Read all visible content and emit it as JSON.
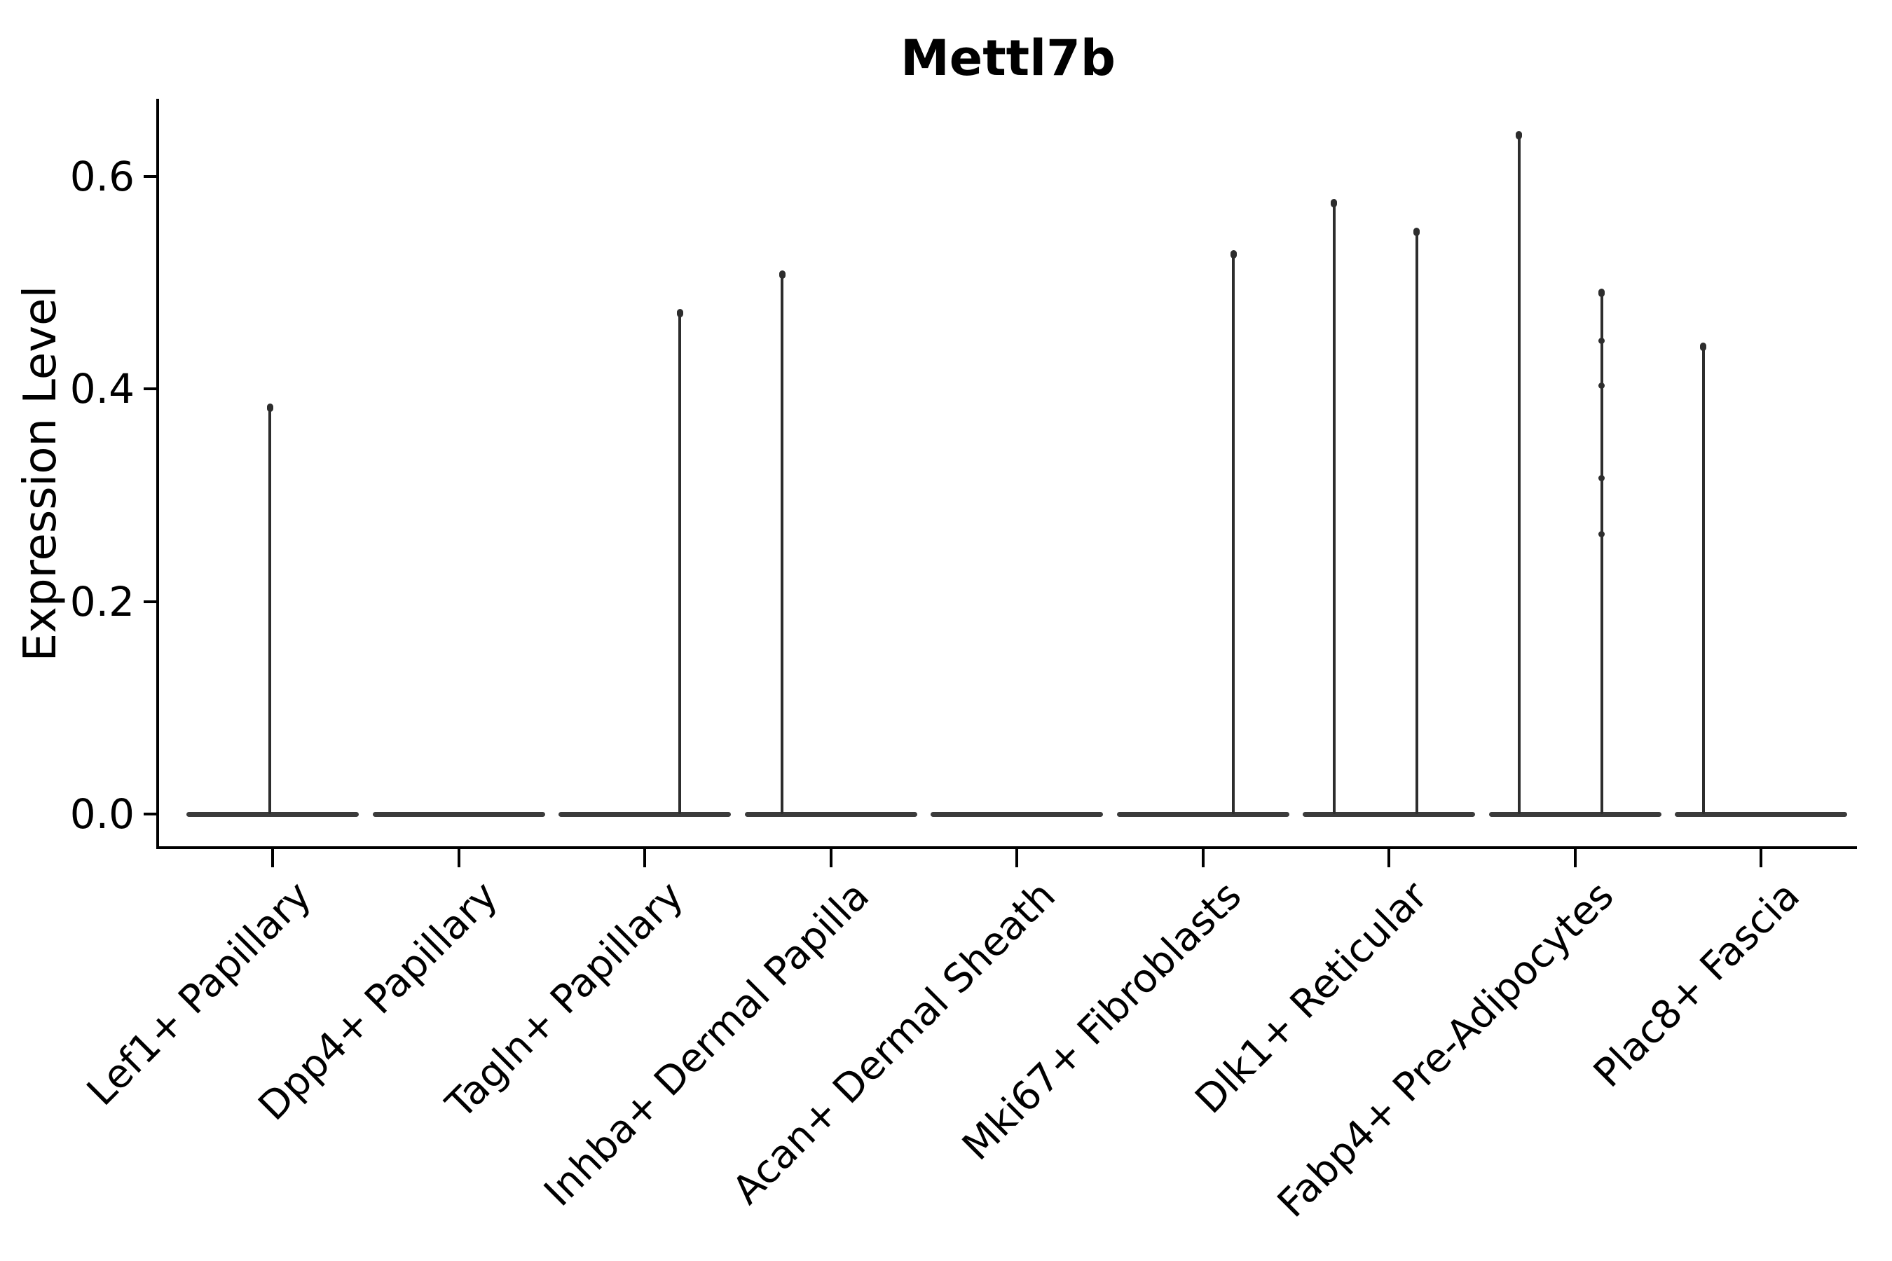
{
  "title": "Mettl7b",
  "ylabel": "Expression Level",
  "axes": {
    "y_ticks": [
      {
        "label": "0.0",
        "value": 0.0
      },
      {
        "label": "0.2",
        "value": 0.2
      },
      {
        "label": "0.4",
        "value": 0.4
      },
      {
        "label": "0.6",
        "value": 0.6
      }
    ]
  },
  "chart_data": {
    "type": "violin",
    "title": "Mettl7b",
    "xlabel": "",
    "ylabel": "Expression Level",
    "ylim": [
      0,
      0.67
    ],
    "grid": false,
    "legend": "none",
    "description": "Violin plot of Mettl7b expression per fibroblast cluster; distributions are concentrated at 0 (flat bases) with thin spikes reaching the maximum expressed values; spikes sit at slight offsets from each category center.",
    "categories": [
      "Lef1+ Papillary",
      "Dpp4+ Papillary",
      "Tagln+ Papillary",
      "Inhba+ Dermal Papilla",
      "Acan+ Dermal Sheath",
      "Mki67+ Fibroblasts",
      "Dlk1+ Reticular",
      "Fabp4+ Pre-Adipocytes",
      "Plac8+ Fascia"
    ],
    "baseline_value": 0.0,
    "series": [
      {
        "category": "Lef1+ Papillary",
        "spikes": [
          {
            "max_value": 0.385,
            "x_offset_frac": -0.015,
            "knot_values": []
          }
        ]
      },
      {
        "category": "Dpp4+ Papillary",
        "spikes": []
      },
      {
        "category": "Tagln+ Papillary",
        "spikes": [
          {
            "max_value": 0.474,
            "x_offset_frac": 0.19,
            "knot_values": []
          }
        ]
      },
      {
        "category": "Inhba+ Dermal Papilla",
        "spikes": [
          {
            "max_value": 0.51,
            "x_offset_frac": -0.26,
            "knot_values": []
          }
        ]
      },
      {
        "category": "Acan+ Dermal Sheath",
        "spikes": []
      },
      {
        "category": "Mki67+ Fibroblasts",
        "spikes": [
          {
            "max_value": 0.529,
            "x_offset_frac": 0.165,
            "knot_values": []
          }
        ]
      },
      {
        "category": "Dlk1+ Reticular",
        "spikes": [
          {
            "max_value": 0.577,
            "x_offset_frac": -0.295,
            "knot_values": []
          },
          {
            "max_value": 0.55,
            "x_offset_frac": 0.15,
            "knot_values": []
          }
        ]
      },
      {
        "category": "Fabp4+ Pre-Adipocytes",
        "spikes": [
          {
            "max_value": 0.641,
            "x_offset_frac": -0.3,
            "knot_values": []
          },
          {
            "max_value": 0.493,
            "x_offset_frac": 0.145,
            "knot_values": [
              0.445,
              0.403,
              0.316,
              0.263
            ]
          }
        ]
      },
      {
        "category": "Plac8+ Fascia",
        "spikes": [
          {
            "max_value": 0.442,
            "x_offset_frac": -0.31,
            "knot_values": []
          }
        ]
      }
    ]
  },
  "colors": {
    "violin_outline": "#2d2d2d",
    "violin_base": "#3b3b3b",
    "axis": "#000000",
    "text": "#000000",
    "background": "#ffffff"
  }
}
